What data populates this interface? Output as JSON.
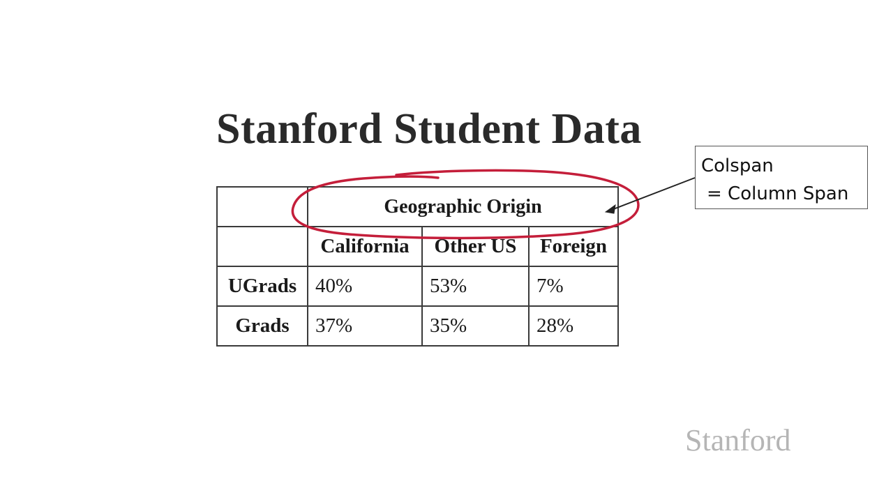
{
  "slide": {
    "title": "Stanford Student Data",
    "logo_text": "Stanford"
  },
  "table": {
    "header_group": "Geographic Origin",
    "columns": [
      "California",
      "Other US",
      "Foreign"
    ],
    "rows": [
      {
        "label": "UGrads",
        "values": [
          "40%",
          "53%",
          "7%"
        ]
      },
      {
        "label": "Grads",
        "values": [
          "37%",
          "35%",
          "28%"
        ]
      }
    ]
  },
  "callout": {
    "line1": "Colspan",
    "line2": "= Column Span"
  },
  "annotation": {
    "ink_color": "#c41e3a",
    "arrow_color": "#222222"
  }
}
